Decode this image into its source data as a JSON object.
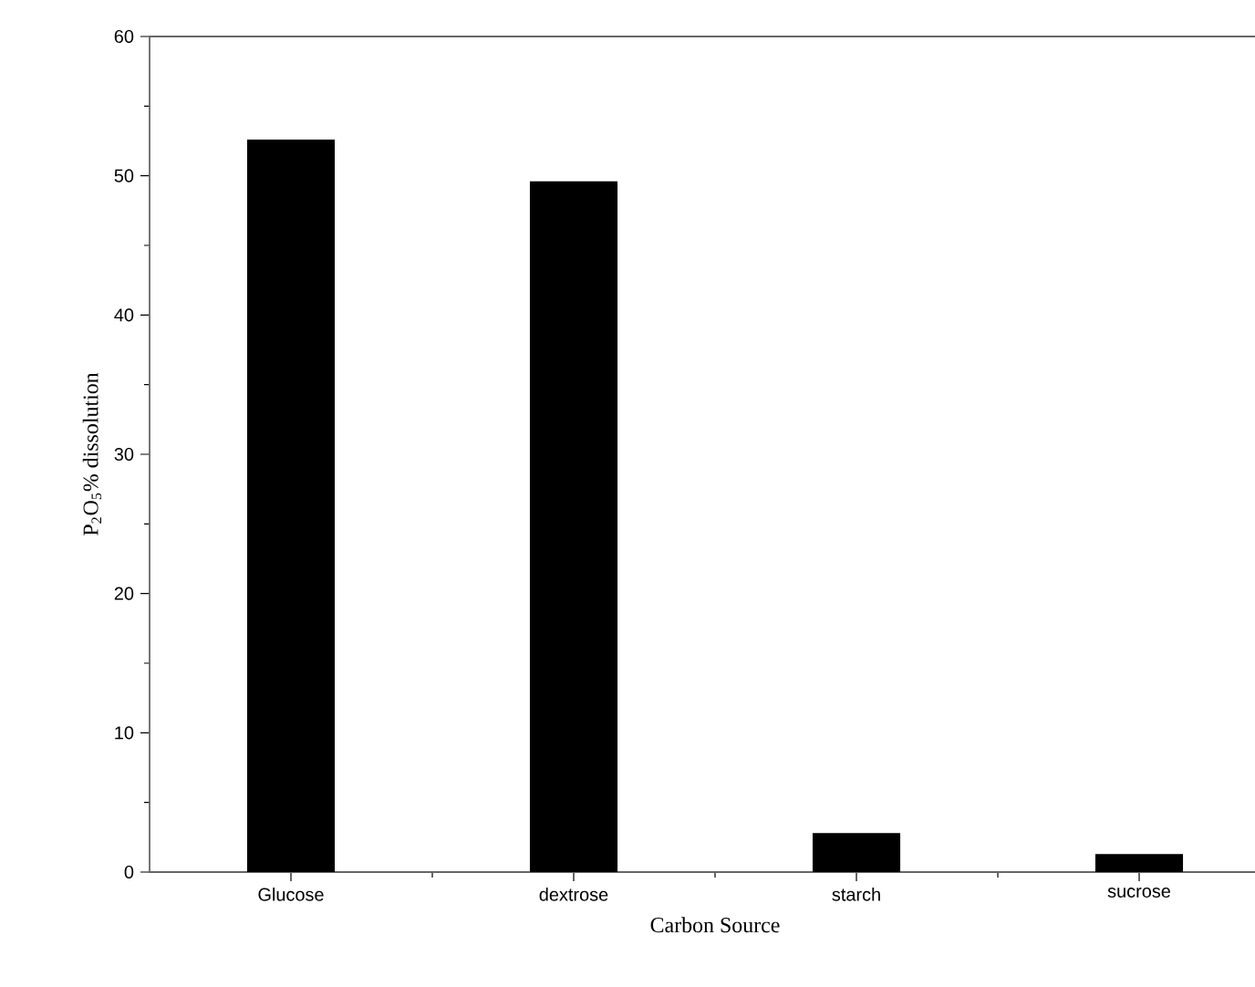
{
  "chart_data": {
    "type": "bar",
    "xlabel": "Carbon Source",
    "ylabel": "P$_{2}$O$_{5}$% dissolution",
    "categories": [
      "Glucose",
      "dextrose",
      "starch",
      "sucrose"
    ],
    "values": [
      52.6,
      49.6,
      2.8,
      1.3
    ],
    "color": "#000000",
    "ylim": [
      0,
      60
    ],
    "yticks": [
      0,
      10,
      20,
      30,
      40,
      50,
      60
    ],
    "grid": false
  }
}
